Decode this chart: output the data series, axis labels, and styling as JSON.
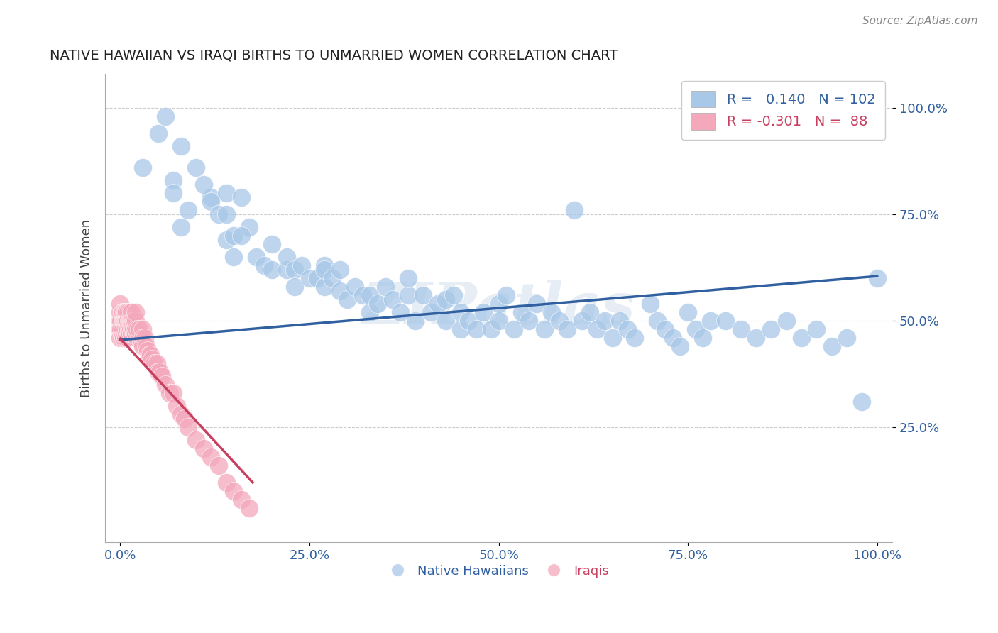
{
  "title": "NATIVE HAWAIIAN VS IRAQI BIRTHS TO UNMARRIED WOMEN CORRELATION CHART",
  "source": "Source: ZipAtlas.com",
  "ylabel": "Births to Unmarried Women",
  "xlim": [
    -0.02,
    1.02
  ],
  "ylim": [
    -0.02,
    1.08
  ],
  "xtick_vals": [
    0.0,
    0.25,
    0.5,
    0.75,
    1.0
  ],
  "xtick_labels": [
    "0.0%",
    "25.0%",
    "50.0%",
    "75.0%",
    "100.0%"
  ],
  "ytick_vals": [
    0.25,
    0.5,
    0.75,
    1.0
  ],
  "ytick_labels": [
    "25.0%",
    "50.0%",
    "75.0%",
    "100.0%"
  ],
  "blue_r": 0.14,
  "blue_n": 102,
  "pink_r": -0.301,
  "pink_n": 88,
  "blue_color": "#A8C8E8",
  "pink_color": "#F4A8BC",
  "blue_line_color": "#3060A0",
  "pink_line_color": "#C84060",
  "watermark": "ZIPatlas",
  "legend_blue_label": "Native Hawaiians",
  "legend_pink_label": "Iraqis",
  "blue_trend_x0": 0.0,
  "blue_trend_y0": 0.455,
  "blue_trend_x1": 1.0,
  "blue_trend_y1": 0.605,
  "pink_trend_x0": 0.0,
  "pink_trend_y0": 0.458,
  "pink_trend_x1": 0.175,
  "pink_trend_y1": 0.12,
  "blue_x": [
    0.03,
    0.07,
    0.08,
    0.12,
    0.14,
    0.14,
    0.16,
    0.17,
    0.18,
    0.19,
    0.2,
    0.2,
    0.22,
    0.22,
    0.23,
    0.23,
    0.24,
    0.25,
    0.26,
    0.27,
    0.27,
    0.27,
    0.28,
    0.29,
    0.29,
    0.3,
    0.31,
    0.32,
    0.33,
    0.33,
    0.34,
    0.35,
    0.36,
    0.37,
    0.38,
    0.38,
    0.39,
    0.4,
    0.41,
    0.42,
    0.43,
    0.43,
    0.44,
    0.45,
    0.45,
    0.46,
    0.47,
    0.48,
    0.49,
    0.5,
    0.5,
    0.51,
    0.52,
    0.53,
    0.54,
    0.55,
    0.56,
    0.57,
    0.58,
    0.59,
    0.6,
    0.61,
    0.62,
    0.63,
    0.64,
    0.65,
    0.66,
    0.67,
    0.68,
    0.7,
    0.71,
    0.72,
    0.73,
    0.74,
    0.75,
    0.76,
    0.77,
    0.78,
    0.8,
    0.82,
    0.84,
    0.86,
    0.88,
    0.9,
    0.92,
    0.94,
    0.96,
    0.98,
    1.0,
    0.05,
    0.06,
    0.07,
    0.08,
    0.09,
    0.1,
    0.11,
    0.12,
    0.13,
    0.14,
    0.15,
    0.15,
    0.16
  ],
  "blue_y": [
    0.86,
    0.83,
    0.91,
    0.79,
    0.69,
    0.8,
    0.79,
    0.72,
    0.65,
    0.63,
    0.62,
    0.68,
    0.62,
    0.65,
    0.62,
    0.58,
    0.63,
    0.6,
    0.6,
    0.63,
    0.58,
    0.62,
    0.6,
    0.57,
    0.62,
    0.55,
    0.58,
    0.56,
    0.52,
    0.56,
    0.54,
    0.58,
    0.55,
    0.52,
    0.56,
    0.6,
    0.5,
    0.56,
    0.52,
    0.54,
    0.5,
    0.55,
    0.56,
    0.48,
    0.52,
    0.5,
    0.48,
    0.52,
    0.48,
    0.54,
    0.5,
    0.56,
    0.48,
    0.52,
    0.5,
    0.54,
    0.48,
    0.52,
    0.5,
    0.48,
    0.76,
    0.5,
    0.52,
    0.48,
    0.5,
    0.46,
    0.5,
    0.48,
    0.46,
    0.54,
    0.5,
    0.48,
    0.46,
    0.44,
    0.52,
    0.48,
    0.46,
    0.5,
    0.5,
    0.48,
    0.46,
    0.48,
    0.5,
    0.46,
    0.48,
    0.44,
    0.46,
    0.31,
    0.6,
    0.94,
    0.98,
    0.8,
    0.72,
    0.76,
    0.86,
    0.82,
    0.78,
    0.75,
    0.75,
    0.7,
    0.65,
    0.7
  ],
  "pink_x": [
    0.0,
    0.0,
    0.0,
    0.0,
    0.0,
    0.001,
    0.001,
    0.002,
    0.002,
    0.003,
    0.003,
    0.003,
    0.004,
    0.004,
    0.005,
    0.005,
    0.005,
    0.006,
    0.006,
    0.006,
    0.007,
    0.007,
    0.007,
    0.008,
    0.008,
    0.008,
    0.009,
    0.009,
    0.01,
    0.01,
    0.01,
    0.01,
    0.01,
    0.012,
    0.012,
    0.012,
    0.013,
    0.013,
    0.014,
    0.014,
    0.015,
    0.015,
    0.015,
    0.016,
    0.016,
    0.017,
    0.017,
    0.018,
    0.018,
    0.019,
    0.02,
    0.02,
    0.02,
    0.02,
    0.022,
    0.022,
    0.025,
    0.025,
    0.028,
    0.03,
    0.03,
    0.03,
    0.032,
    0.034,
    0.036,
    0.038,
    0.04,
    0.042,
    0.045,
    0.048,
    0.05,
    0.052,
    0.055,
    0.06,
    0.065,
    0.07,
    0.075,
    0.08,
    0.085,
    0.09,
    0.1,
    0.11,
    0.12,
    0.13,
    0.14,
    0.15,
    0.16,
    0.17
  ],
  "pink_y": [
    0.48,
    0.5,
    0.52,
    0.46,
    0.54,
    0.5,
    0.48,
    0.52,
    0.47,
    0.5,
    0.52,
    0.48,
    0.46,
    0.5,
    0.5,
    0.52,
    0.47,
    0.5,
    0.52,
    0.48,
    0.5,
    0.46,
    0.52,
    0.5,
    0.47,
    0.52,
    0.48,
    0.5,
    0.5,
    0.52,
    0.48,
    0.46,
    0.5,
    0.48,
    0.5,
    0.47,
    0.5,
    0.52,
    0.48,
    0.5,
    0.5,
    0.47,
    0.52,
    0.48,
    0.5,
    0.48,
    0.5,
    0.47,
    0.5,
    0.48,
    0.48,
    0.5,
    0.47,
    0.52,
    0.46,
    0.48,
    0.46,
    0.48,
    0.45,
    0.48,
    0.46,
    0.44,
    0.46,
    0.44,
    0.43,
    0.42,
    0.42,
    0.41,
    0.4,
    0.4,
    0.38,
    0.38,
    0.37,
    0.35,
    0.33,
    0.33,
    0.3,
    0.28,
    0.27,
    0.25,
    0.22,
    0.2,
    0.18,
    0.16,
    0.12,
    0.1,
    0.08,
    0.06
  ]
}
